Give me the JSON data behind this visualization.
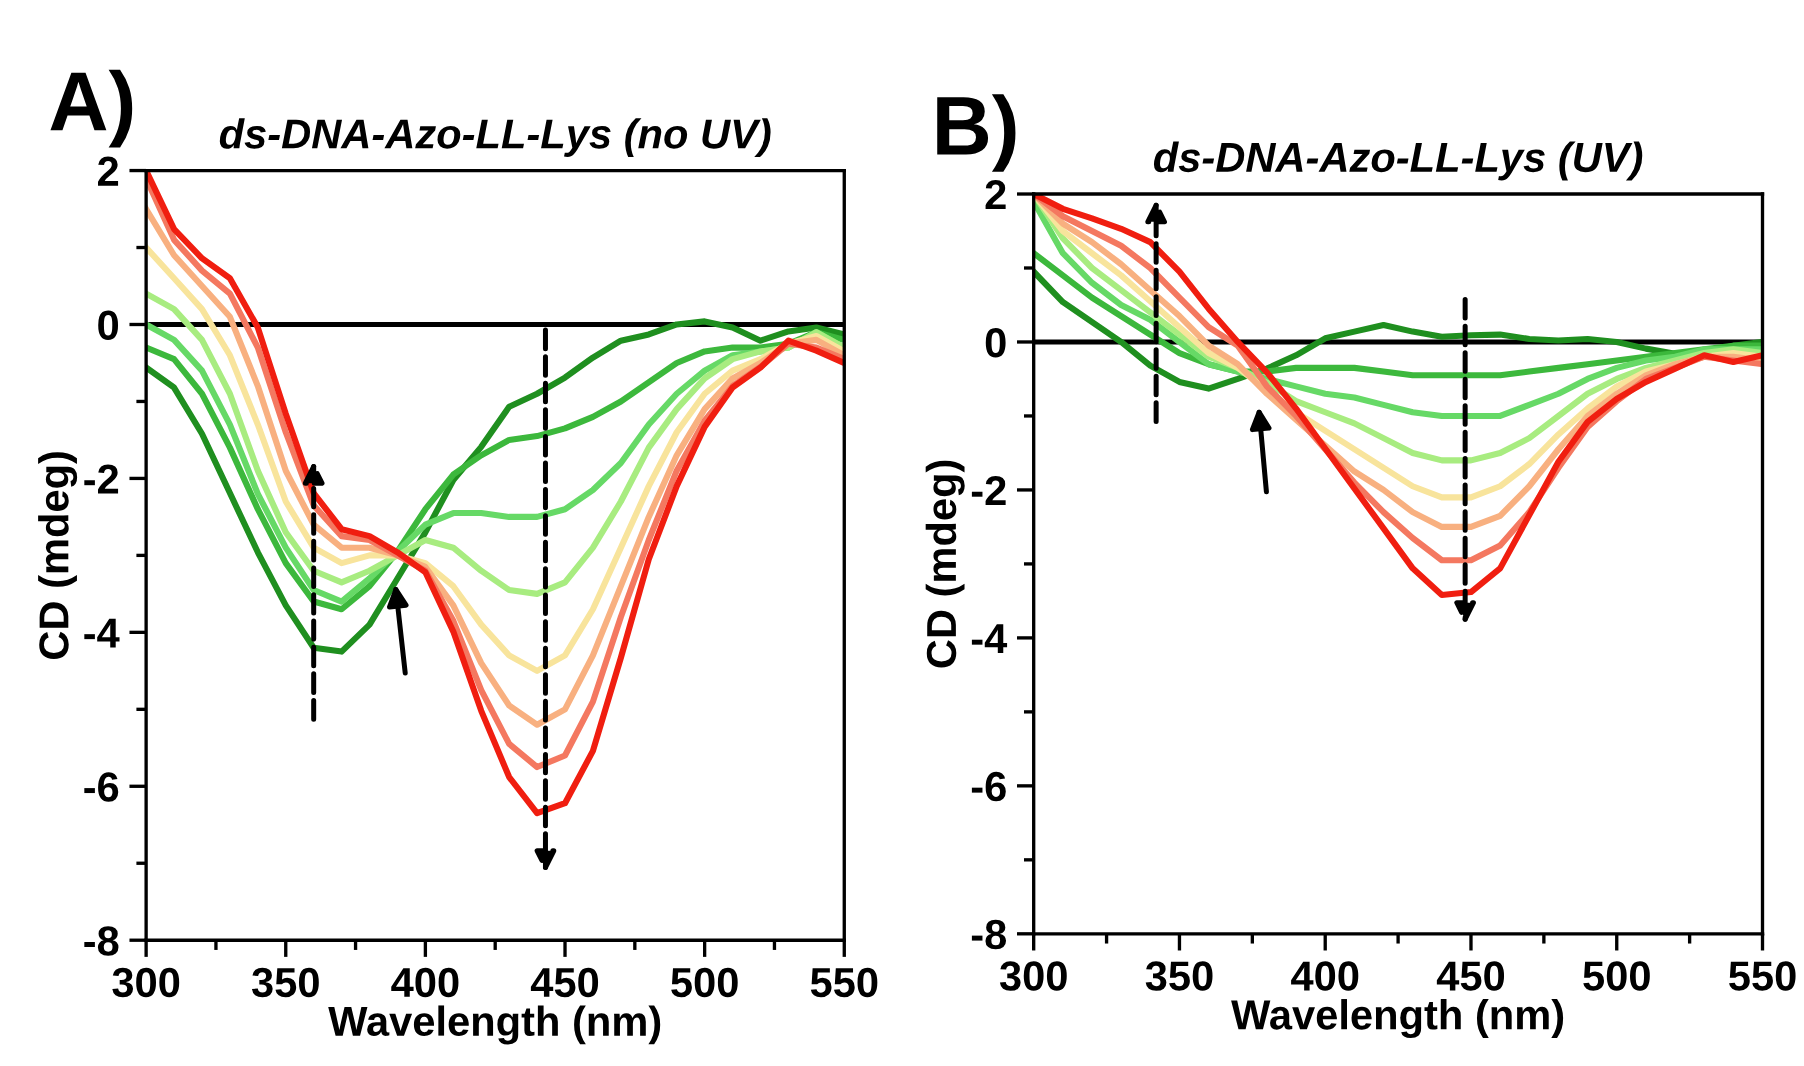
{
  "chart_data": [
    {
      "type": "line",
      "title": "ds-DNA-Azo-LL-Lys (no UV)",
      "annotations": [
        "A)"
      ],
      "xlabel": "Wavelength (nm)",
      "ylabel": "CD (mdeg)",
      "xlim": [
        300,
        550
      ],
      "xticks": [
        300,
        350,
        400,
        450,
        500,
        550
      ],
      "ylim": [
        -8,
        2
      ],
      "yticks": [
        -8,
        -6,
        -4,
        -2,
        0,
        2
      ],
      "grid": false,
      "legend": false,
      "ref_lines": [
        {
          "axis": "y",
          "value": 0,
          "color": "#000000",
          "line_style": "solid"
        }
      ],
      "x": [
        300,
        310,
        320,
        330,
        340,
        350,
        360,
        370,
        380,
        390,
        400,
        410,
        420,
        430,
        440,
        450,
        460,
        470,
        480,
        490,
        500,
        510,
        520,
        530,
        540,
        550
      ],
      "series": [
        {
          "color": "#1f8f1f",
          "values": [
            -0.56,
            -0.82,
            -1.42,
            -2.19,
            -2.96,
            -3.65,
            -4.2,
            -4.25,
            -3.9,
            -3.3,
            -2.7,
            -2.02,
            -1.59,
            -1.07,
            -0.9,
            -0.69,
            -0.43,
            -0.21,
            -0.13,
            0,
            0.04,
            -0.04,
            -0.21,
            -0.09,
            -0.04,
            -0.13
          ]
        },
        {
          "color": "#3cb83c",
          "values": [
            -0.3,
            -0.45,
            -0.9,
            -1.6,
            -2.4,
            -3.1,
            -3.6,
            -3.7,
            -3.4,
            -2.95,
            -2.4,
            -1.95,
            -1.7,
            -1.5,
            -1.45,
            -1.35,
            -1.2,
            -1.0,
            -0.75,
            -0.5,
            -0.35,
            -0.3,
            -0.3,
            -0.25,
            -0.1,
            -0.2
          ]
        },
        {
          "color": "#66d966",
          "values": [
            0,
            -0.2,
            -0.6,
            -1.3,
            -2.2,
            -2.9,
            -3.45,
            -3.6,
            -3.3,
            -2.95,
            -2.6,
            -2.45,
            -2.45,
            -2.5,
            -2.5,
            -2.4,
            -2.15,
            -1.8,
            -1.3,
            -0.9,
            -0.6,
            -0.4,
            -0.35,
            -0.3,
            -0.1,
            -0.3
          ]
        },
        {
          "color": "#a8ec80",
          "values": [
            0.4,
            0.2,
            -0.2,
            -0.9,
            -1.9,
            -2.7,
            -3.2,
            -3.35,
            -3.2,
            -3.0,
            -2.8,
            -2.9,
            -3.2,
            -3.45,
            -3.5,
            -3.35,
            -2.9,
            -2.3,
            -1.6,
            -1.1,
            -0.7,
            -0.45,
            -0.35,
            -0.3,
            -0.1,
            -0.3
          ]
        },
        {
          "color": "#f8e49c",
          "values": [
            1.0,
            0.6,
            0.2,
            -0.4,
            -1.3,
            -2.3,
            -2.9,
            -3.1,
            -3.0,
            -3.0,
            -3.1,
            -3.4,
            -3.9,
            -4.3,
            -4.5,
            -4.3,
            -3.7,
            -2.9,
            -2.1,
            -1.4,
            -0.9,
            -0.6,
            -0.45,
            -0.25,
            -0.15,
            -0.35
          ]
        },
        {
          "color": "#f8b080",
          "values": [
            1.5,
            0.9,
            0.5,
            0.1,
            -0.8,
            -1.9,
            -2.6,
            -2.9,
            -2.9,
            -3.0,
            -3.15,
            -3.65,
            -4.4,
            -4.95,
            -5.2,
            -5.0,
            -4.3,
            -3.4,
            -2.5,
            -1.7,
            -1.1,
            -0.7,
            -0.5,
            -0.25,
            -0.2,
            -0.4
          ]
        },
        {
          "color": "#f47860",
          "values": [
            1.9,
            1.1,
            0.7,
            0.4,
            -0.3,
            -1.4,
            -2.35,
            -2.75,
            -2.8,
            -3.0,
            -3.2,
            -3.85,
            -4.75,
            -5.45,
            -5.75,
            -5.6,
            -4.9,
            -3.8,
            -2.8,
            -1.9,
            -1.25,
            -0.8,
            -0.55,
            -0.25,
            -0.3,
            -0.45
          ]
        },
        {
          "color": "#f01e10",
          "values": [
            2.0,
            1.24,
            0.86,
            0.6,
            -0.04,
            -1.16,
            -2.19,
            -2.66,
            -2.75,
            -2.96,
            -3.22,
            -3.99,
            -5.02,
            -5.88,
            -6.35,
            -6.22,
            -5.54,
            -4.33,
            -3.05,
            -2.1,
            -1.33,
            -0.82,
            -0.56,
            -0.21,
            -0.34,
            -0.5
          ]
        }
      ]
    },
    {
      "type": "line",
      "title": "ds-DNA-Azo-LL-Lys (UV)",
      "annotations": [
        "B)"
      ],
      "xlabel": "Wavelength (nm)",
      "ylabel": "CD (mdeg)",
      "xlim": [
        300,
        550
      ],
      "xticks": [
        300,
        350,
        400,
        450,
        500,
        550
      ],
      "ylim": [
        -8,
        2
      ],
      "yticks": [
        -8,
        -6,
        -4,
        -2,
        0,
        2
      ],
      "grid": false,
      "legend": false,
      "ref_lines": [
        {
          "axis": "y",
          "value": 0,
          "color": "#000000",
          "line_style": "solid"
        }
      ],
      "x": [
        300,
        310,
        320,
        330,
        340,
        350,
        360,
        370,
        380,
        390,
        400,
        410,
        420,
        430,
        440,
        450,
        460,
        470,
        480,
        490,
        500,
        510,
        520,
        530,
        540,
        550
      ],
      "series": [
        {
          "color": "#1f8f1f",
          "values": [
            0.95,
            0.54,
            0.27,
            0,
            -0.32,
            -0.54,
            -0.63,
            -0.5,
            -0.36,
            -0.18,
            0.05,
            0.14,
            0.23,
            0.14,
            0.07,
            0.09,
            0.1,
            0.04,
            0.02,
            0.04,
            0,
            -0.09,
            -0.16,
            -0.14,
            -0.05,
            0
          ]
        },
        {
          "color": "#3cb83c",
          "values": [
            1.2,
            0.9,
            0.6,
            0.35,
            0.1,
            -0.15,
            -0.3,
            -0.4,
            -0.4,
            -0.35,
            -0.35,
            -0.35,
            -0.4,
            -0.45,
            -0.45,
            -0.45,
            -0.45,
            -0.4,
            -0.35,
            -0.3,
            -0.25,
            -0.2,
            -0.15,
            -0.1,
            -0.05,
            -0.05
          ]
        },
        {
          "color": "#66d966",
          "values": [
            1.9,
            1.2,
            0.8,
            0.5,
            0.3,
            0.0,
            -0.3,
            -0.4,
            -0.5,
            -0.6,
            -0.7,
            -0.75,
            -0.85,
            -0.95,
            -1.0,
            -1.0,
            -1.0,
            -0.85,
            -0.7,
            -0.5,
            -0.35,
            -0.25,
            -0.2,
            -0.1,
            -0.1,
            -0.1
          ]
        },
        {
          "color": "#a8ec80",
          "values": [
            2.0,
            1.4,
            1.0,
            0.7,
            0.4,
            0.1,
            -0.2,
            -0.35,
            -0.55,
            -0.8,
            -0.95,
            -1.1,
            -1.3,
            -1.5,
            -1.6,
            -1.6,
            -1.5,
            -1.3,
            -1.0,
            -0.7,
            -0.5,
            -0.35,
            -0.25,
            -0.15,
            -0.1,
            -0.15
          ]
        },
        {
          "color": "#f8e49c",
          "values": [
            2.0,
            1.5,
            1.2,
            0.9,
            0.55,
            0.2,
            -0.15,
            -0.35,
            -0.65,
            -0.95,
            -1.2,
            -1.45,
            -1.7,
            -1.95,
            -2.1,
            -2.1,
            -1.95,
            -1.65,
            -1.25,
            -0.9,
            -0.6,
            -0.4,
            -0.3,
            -0.2,
            -0.15,
            -0.2
          ]
        },
        {
          "color": "#f8b080",
          "values": [
            2.0,
            1.6,
            1.35,
            1.05,
            0.7,
            0.35,
            -0.05,
            -0.3,
            -0.7,
            -1.05,
            -1.4,
            -1.75,
            -2.0,
            -2.3,
            -2.5,
            -2.5,
            -2.35,
            -1.95,
            -1.45,
            -1.0,
            -0.7,
            -0.45,
            -0.3,
            -0.2,
            -0.2,
            -0.25
          ]
        },
        {
          "color": "#f47860",
          "values": [
            2.0,
            1.7,
            1.5,
            1.3,
            1.0,
            0.6,
            0.2,
            -0.05,
            -0.6,
            -1.0,
            -1.45,
            -1.9,
            -2.3,
            -2.65,
            -2.95,
            -2.95,
            -2.75,
            -2.3,
            -1.7,
            -1.15,
            -0.8,
            -0.5,
            -0.35,
            -0.2,
            -0.25,
            -0.3
          ]
        },
        {
          "color": "#f01e10",
          "values": [
            2.0,
            1.8,
            1.67,
            1.53,
            1.35,
            0.95,
            0.45,
            0,
            -0.41,
            -0.9,
            -1.44,
            -1.98,
            -2.52,
            -3.06,
            -3.42,
            -3.38,
            -3.06,
            -2.34,
            -1.62,
            -1.08,
            -0.77,
            -0.54,
            -0.36,
            -0.18,
            -0.27,
            -0.18
          ]
        }
      ]
    }
  ]
}
